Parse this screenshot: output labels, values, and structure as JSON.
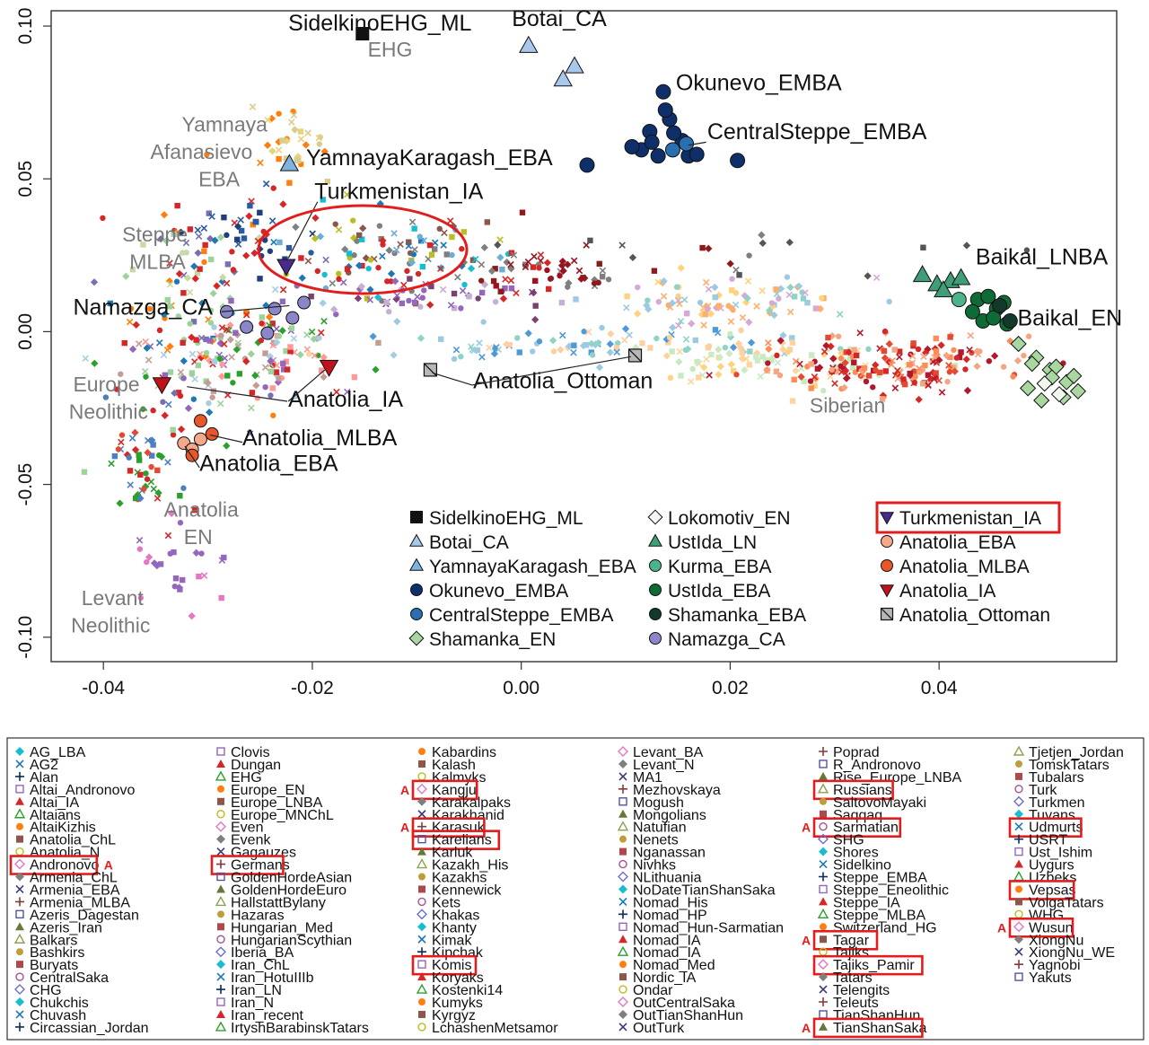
{
  "chart_data": {
    "type": "scatter",
    "xlim": [
      -0.045,
      0.057
    ],
    "ylim": [
      -0.108,
      0.105
    ],
    "x_ticks": [
      "-0.04",
      "-0.02",
      "0.00",
      "0.02",
      "0.04"
    ],
    "x_tick_values": [
      -0.04,
      -0.02,
      0.0,
      0.02,
      0.04
    ],
    "y_ticks": [
      "0.10",
      "0.05",
      "0.00",
      "-0.05",
      "-0.10"
    ],
    "y_tick_values": [
      0.1,
      0.05,
      0.0,
      -0.05,
      -0.1
    ],
    "grid": false,
    "legend_placement": "bottom-right inside plot; full population legend below plot",
    "black_labels": [
      {
        "text": "SidelkinoEHG_ML",
        "x": -0.0223,
        "y": 0.0985
      },
      {
        "text": "Botai_CA",
        "x": -0.0009,
        "y": 0.1
      },
      {
        "text": "Okunevo_EMBA",
        "x": 0.0148,
        "y": 0.079
      },
      {
        "text": "CentralSteppe_EMBA",
        "x": 0.0178,
        "y": 0.063
      },
      {
        "text": "YamnayaKaragash_EBA",
        "x": -0.0206,
        "y": 0.0545
      },
      {
        "text": "Turkmenistan_IA",
        "x": -0.0198,
        "y": 0.0435
      },
      {
        "text": "Baikal_LNBA",
        "x": 0.0435,
        "y": 0.022
      },
      {
        "text": "Baikal_EN",
        "x": 0.0475,
        "y": 0.002
      },
      {
        "text": "Namazga_CA",
        "x": -0.0429,
        "y": 0.0055
      },
      {
        "text": "Anatolia_Ottoman",
        "x": -0.0046,
        "y": -0.0185
      },
      {
        "text": "Anatolia_IA",
        "x": -0.0223,
        "y": -0.0245
      },
      {
        "text": "Anatolia_MLBA",
        "x": -0.0267,
        "y": -0.0372
      },
      {
        "text": "Anatolia_EBA",
        "x": -0.0308,
        "y": -0.0455
      }
    ],
    "gray_labels": [
      {
        "text": "EHG",
        "x": -0.0147,
        "y": 0.09
      },
      {
        "text": "Yamnaya",
        "x": -0.0325,
        "y": 0.0655
      },
      {
        "text": "Afanasievo",
        "x": -0.0355,
        "y": 0.0565
      },
      {
        "text": "EBA",
        "x": -0.0309,
        "y": 0.0475
      },
      {
        "text": "Steppe",
        "x": -0.0382,
        "y": 0.0295
      },
      {
        "text": "MLBA",
        "x": -0.0375,
        "y": 0.0205
      },
      {
        "text": "Europe",
        "x": -0.0429,
        "y": -0.0195
      },
      {
        "text": "Neolithic",
        "x": -0.0433,
        "y": -0.0285
      },
      {
        "text": "Anatolia",
        "x": -0.0342,
        "y": -0.0605
      },
      {
        "text": "EN",
        "x": -0.0323,
        "y": -0.0695
      },
      {
        "text": "Levant",
        "x": -0.0421,
        "y": -0.0895
      },
      {
        "text": "Neolithic",
        "x": -0.0431,
        "y": -0.0985
      },
      {
        "text": "Siberian",
        "x": 0.0276,
        "y": -0.0265
      }
    ],
    "series": [
      {
        "name": "SidelkinoEHG_ML",
        "color": "#111111",
        "marker": "square",
        "x": [
          -0.0152
        ],
        "y": [
          0.0975
        ]
      },
      {
        "name": "Botai_CA",
        "color": "#a9c7ea",
        "marker": "triangle-up",
        "x": [
          0.0007,
          0.004,
          0.0051
        ],
        "y": [
          0.0935,
          0.0825,
          0.0868
        ]
      },
      {
        "name": "YamnayaKaragash_EBA",
        "color": "#7fb2df",
        "marker": "triangle-up",
        "x": [
          -0.0222
        ],
        "y": [
          0.0548
        ]
      },
      {
        "name": "Okunevo_EMBA",
        "color": "#0f2f6b",
        "marker": "circle",
        "x": [
          0.0136,
          0.0123,
          0.0142,
          0.0115,
          0.0154,
          0.0131,
          0.016,
          0.0106,
          0.0146,
          0.0168,
          0.0207,
          0.0063,
          0.0138,
          0.0125
        ],
        "y": [
          0.0785,
          0.0655,
          0.0695,
          0.0595,
          0.0625,
          0.0575,
          0.0575,
          0.0605,
          0.065,
          0.058,
          0.056,
          0.0545,
          0.0725,
          0.062
        ]
      },
      {
        "name": "CentralSteppe_EMBA",
        "color": "#2a6fb0",
        "marker": "circle",
        "x": [
          0.0158,
          0.0145
        ],
        "y": [
          0.0615,
          0.0595
        ]
      },
      {
        "name": "Shamanka_EN",
        "color": "#a8d8a0",
        "marker": "diamond",
        "x": [
          0.0476,
          0.0493,
          0.0506,
          0.0485,
          0.0512,
          0.0522,
          0.0498,
          0.0533,
          0.0519,
          0.0508,
          0.0489,
          0.0529
        ],
        "y": [
          -0.004,
          -0.0085,
          -0.0125,
          -0.0185,
          -0.0115,
          -0.0165,
          -0.0225,
          -0.0195,
          -0.0215,
          -0.015,
          -0.0105,
          -0.0145
        ]
      },
      {
        "name": "Lokomotiv_EN",
        "color": "#f3f6ee",
        "marker": "diamond",
        "x": [
          0.0501,
          0.0515
        ],
        "y": [
          -0.017,
          -0.0205
        ]
      },
      {
        "name": "UstIda_LN",
        "color": "#3f9e78",
        "marker": "triangle-up",
        "x": [
          0.0384,
          0.0398,
          0.0411,
          0.0421,
          0.0404
        ],
        "y": [
          0.0185,
          0.0155,
          0.0165,
          0.0175,
          0.0135
        ]
      },
      {
        "name": "Kurma_EBA",
        "color": "#4db38a",
        "marker": "circle",
        "x": [
          0.0419
        ],
        "y": [
          0.0105
        ]
      },
      {
        "name": "UstIda_EBA",
        "color": "#0f6b36",
        "marker": "circle",
        "x": [
          0.0437,
          0.0447,
          0.0455,
          0.0442,
          0.0432,
          0.0462,
          0.0452,
          0.0465
        ],
        "y": [
          0.0105,
          0.0115,
          0.0075,
          0.0035,
          0.0065,
          0.0095,
          0.0045,
          0.0025
        ]
      },
      {
        "name": "Shamanka_EBA",
        "color": "#13392a",
        "marker": "circle",
        "x": [
          0.0458,
          0.0468
        ],
        "y": [
          0.0085,
          0.0035
        ]
      },
      {
        "name": "Namazga_CA",
        "color": "#8a86c8",
        "marker": "circle",
        "x": [
          -0.0208,
          -0.0219,
          -0.0236,
          -0.0243,
          -0.0263,
          -0.0282
        ],
        "y": [
          0.0095,
          0.0045,
          0.0075,
          -0.0005,
          0.0015,
          0.0065
        ]
      },
      {
        "name": "Turkmenistan_IA",
        "color": "#4a2a8c",
        "marker": "triangle-down",
        "x": [
          -0.0225
        ],
        "y": [
          0.0215
        ]
      },
      {
        "name": "Anatolia_EBA",
        "color": "#f5a98a",
        "marker": "circle",
        "x": [
          -0.0323,
          -0.0315,
          -0.0307
        ],
        "y": [
          -0.0365,
          -0.0385,
          -0.0352
        ]
      },
      {
        "name": "Anatolia_MLBA",
        "color": "#e8572a",
        "marker": "circle",
        "x": [
          -0.0307,
          -0.0296,
          -0.0315
        ],
        "y": [
          -0.0292,
          -0.0335,
          -0.0405
        ]
      },
      {
        "name": "Anatolia_IA",
        "color": "#c0121b",
        "marker": "triangle-down",
        "x": [
          -0.0344,
          -0.0184
        ],
        "y": [
          -0.0172,
          -0.0115
        ]
      },
      {
        "name": "Anatolia_Ottoman",
        "color": "#b7b7b7",
        "marker": "square-x",
        "x": [
          -0.0087,
          0.0109
        ],
        "y": [
          -0.0125,
          -0.0078
        ]
      }
    ],
    "plot_legend": [
      "SidelkinoEHG_ML",
      "Botai_CA",
      "YamnayaKaragash_EBA",
      "Okunevo_EMBA",
      "CentralSteppe_EMBA",
      "Shamanka_EN",
      "Lokomotiv_EN",
      "UstIda_LN",
      "Kurma_EBA",
      "UstIda_EBA",
      "Shamanka_EBA",
      "Namazga_CA",
      "Turkmenistan_IA",
      "Anatolia_EBA",
      "Anatolia_MLBA",
      "Anatolia_IA",
      "Anatolia_Ottoman"
    ],
    "plot_legend_highlighted": "Turkmenistan_IA",
    "background_populations": {
      "columns": [
        [
          "AG_LBA",
          "AG2",
          "Alan",
          "Altai_Andronovo",
          "Altai_IA",
          "Altaians",
          "AltaiKizhis",
          "Anatolia_ChL",
          "Anatolia_N",
          "Andronovo",
          "Armenia_ChL",
          "Armenia_EBA",
          "Armenia_MLBA",
          "Azeris_Dagestan",
          "Azeris_Iran",
          "Balkars",
          "Bashkirs",
          "Buryats",
          "CentralSaka",
          "CHG",
          "Chukchis",
          "Chuvash",
          "Circassian_Jordan"
        ],
        [
          "Clovis",
          "Dungan",
          "EHG",
          "Europe_EN",
          "Europe_LNBA",
          "Europe_MNChL",
          "Even",
          "Evenk",
          "Gagauzes",
          "Germans",
          "GoldenHordeAsian",
          "GoldenHordeEuro",
          "HallstattBylany",
          "Hazaras",
          "Hungarian_Med",
          "HungarianScythian",
          "Iberia_BA",
          "Iran_ChL",
          "Iran_HotuIIIb",
          "Iran_LN",
          "Iran_N",
          "Iran_recent",
          "IrtyshBarabinskTatars"
        ],
        [
          "Kabardins",
          "Kalash",
          "Kalmyks",
          "Kangju",
          "Karakalpaks",
          "Karakhanid",
          "Karasuk",
          "Karelians",
          "Karluk",
          "Kazakh_His",
          "Kazakhs",
          "Kennewick",
          "Kets",
          "Khakas",
          "Khanty",
          "Kimak",
          "Kipchak",
          "Komis",
          "Koryaks",
          "Kostenki14",
          "Kumyks",
          "Kyrgyz",
          "LchashenMetsamor"
        ],
        [
          "Levant_BA",
          "Levant_N",
          "MA1",
          "Mezhovskaya",
          "Mogush",
          "Mongolians",
          "Natufian",
          "Nenets",
          "Nganassan",
          "Nivhks",
          "NLithuania",
          "NoDateTianShanSaka",
          "Nomad_His",
          "Nomad_HP",
          "Nomad_Hun-Sarmatian",
          "Nomad_IA",
          "Nomad_IA",
          "Nomad_Med",
          "Nordic_IA",
          "Ondar",
          "OutCentralSaka",
          "OutTianShanHun",
          "OutTurk"
        ],
        [
          "Poprad",
          "R_Andronovo",
          "Rise_Europe_LNBA",
          "Russians",
          "SaltovoMayaki",
          "Saqqaq",
          "Sarmatian",
          "SHG",
          "Shores",
          "Sidelkino",
          "Steppe_EMBA",
          "Steppe_Eneolithic",
          "Steppe_IA",
          "Steppe_MLBA",
          "Switzerland_HG",
          "Tagar",
          "Tajiks",
          "Tajiks_Pamir",
          "Tatars",
          "Telengits",
          "Teleuts",
          "TianShanHun",
          "TianShanSaka"
        ],
        [
          "Tjetjen_Jordan",
          "TomskTatars",
          "Tubalars",
          "Turk",
          "Turkmen",
          "Tuvans",
          "Udmurts",
          "USRT",
          "Ust_Ishim",
          "Uygurs",
          "Uzbeks",
          "Vepsas",
          "VolgaTatars",
          "WHG",
          "Wusun",
          "XiongNu",
          "XiongNu_WE",
          "Yagnobi",
          "Yakuts"
        ]
      ],
      "highlighted": [
        "Andronovo",
        "Germans",
        "Kangju",
        "Karasuk",
        "Karelians",
        "Komis",
        "Russians",
        "Sarmatian",
        "Tagar",
        "Tajiks_Pamir",
        "TianShanSaka",
        "Udmurts",
        "Vepsas",
        "Wusun"
      ],
      "tag_letter": "A",
      "tagged": [
        "Andronovo",
        "Kangju",
        "Karasuk",
        "Sarmatian",
        "Tagar",
        "TianShanSaka",
        "Wusun"
      ]
    },
    "colors": {
      "highlight_box": "#e11d1d",
      "axis": "#333333",
      "annotation_gray": "#7a7a7a"
    }
  }
}
